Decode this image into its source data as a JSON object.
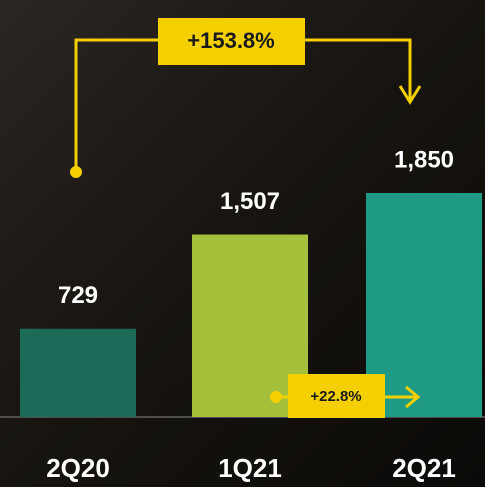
{
  "chart_data": {
    "type": "bar",
    "categories": [
      "2Q20",
      "1Q21",
      "2Q21"
    ],
    "values": [
      729,
      1507,
      1850
    ],
    "value_labels": [
      "729",
      "1,507",
      "1,850"
    ],
    "colors": [
      "#1a6b58",
      "#a5c03a",
      "#1f9b85"
    ],
    "annotations": [
      "+153.8%",
      "+22.8%"
    ]
  }
}
